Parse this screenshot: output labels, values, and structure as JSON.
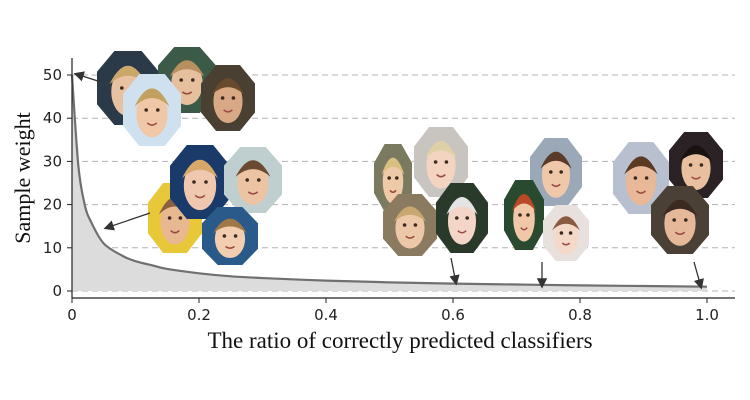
{
  "chart_data": {
    "type": "area",
    "title": "",
    "xlabel": "The ratio of correctly predicted classifiers",
    "ylabel": "Sample weight",
    "xlim": [
      0,
      1.0
    ],
    "ylim": [
      0,
      52
    ],
    "x_ticks": [
      "0",
      "0.2",
      "0.4",
      "0.6",
      "0.8",
      "1.0"
    ],
    "y_ticks": [
      "0",
      "10",
      "20",
      "30",
      "40",
      "50"
    ],
    "grid": "horizontal dashed",
    "series": [
      {
        "name": "",
        "x": [
          0.0,
          0.01,
          0.02,
          0.03,
          0.05,
          0.08,
          0.1,
          0.13,
          0.15,
          0.2,
          0.25,
          0.3,
          0.4,
          0.5,
          0.6,
          0.7,
          0.8,
          0.9,
          1.0
        ],
        "y": [
          50,
          29,
          20,
          16,
          11,
          8.1,
          6.9,
          5.8,
          5.1,
          4.1,
          3.4,
          3.0,
          2.4,
          2.0,
          1.7,
          1.5,
          1.3,
          1.15,
          1.0
        ]
      }
    ],
    "annotations": [
      {
        "name": "face-group-high-weight",
        "points_to": [
          0.0,
          50
        ],
        "faces": 4
      },
      {
        "name": "face-group-low-ratio",
        "points_to": [
          0.05,
          15
        ],
        "faces": 4
      },
      {
        "name": "face-group-mid-ratio",
        "points_to": [
          0.61,
          1.6
        ],
        "faces": 4
      },
      {
        "name": "face-group-high-ratio",
        "points_to": [
          0.75,
          1.4
        ],
        "faces": 3
      },
      {
        "name": "face-group-full-ratio",
        "points_to": [
          0.99,
          1.0
        ],
        "faces": 3
      }
    ],
    "colors": {
      "line": "#707070",
      "fill": "#dcdcdc",
      "grid": "#b4b4b4",
      "arrow": "#333333"
    }
  }
}
